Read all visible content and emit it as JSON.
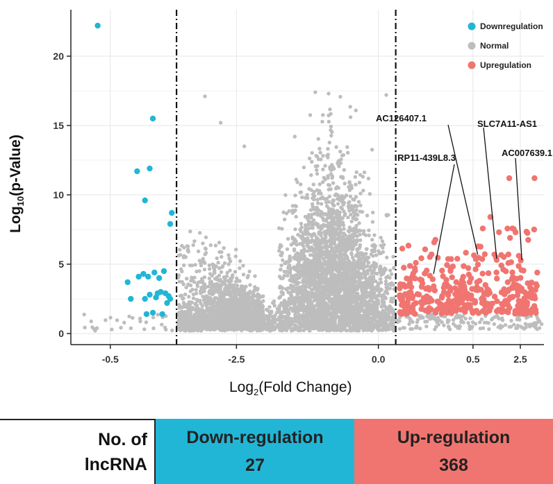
{
  "chart_data": {
    "type": "scatter",
    "title": "",
    "xlabel_main": "Log",
    "xlabel_sub": "2",
    "xlabel_rest": "(Fold Change)",
    "ylabel_main": "Log",
    "ylabel_sub": "10",
    "ylabel_rest": "(p-Value)",
    "xticks": [
      "-0.5",
      "-2.5",
      "0.0",
      "0.5",
      "2.5"
    ],
    "yticks": [
      0,
      5,
      10,
      15,
      20
    ],
    "ylim": [
      0,
      22.5
    ],
    "cutoffs": [
      "left",
      "right"
    ],
    "grid": true,
    "legend_position": "top-right",
    "legend": [
      {
        "name": "Downregulation",
        "color": "#22b6d6"
      },
      {
        "name": "Normal",
        "color": "#bdbdbd"
      },
      {
        "name": "Upregulation",
        "color": "#f07470"
      }
    ],
    "series": [
      {
        "name": "Downregulation",
        "color": "#22b6d6",
        "points": [
          [
            0.17,
            22.2
          ],
          [
            0.52,
            15.5
          ],
          [
            0.5,
            11.9
          ],
          [
            0.42,
            11.7
          ],
          [
            0.47,
            9.6
          ],
          [
            0.64,
            8.7
          ],
          [
            0.63,
            7.9
          ],
          [
            0.36,
            3.7
          ],
          [
            0.38,
            2.5
          ],
          [
            0.43,
            4.1
          ],
          [
            0.46,
            4.3
          ],
          [
            0.49,
            4.1
          ],
          [
            0.53,
            4.4
          ],
          [
            0.56,
            4.0
          ],
          [
            0.59,
            4.5
          ],
          [
            0.47,
            2.5
          ],
          [
            0.5,
            2.8
          ],
          [
            0.54,
            2.6
          ],
          [
            0.57,
            3.0
          ],
          [
            0.6,
            2.9
          ],
          [
            0.62,
            2.7
          ],
          [
            0.63,
            2.5
          ],
          [
            0.61,
            2.2
          ],
          [
            0.52,
            1.5
          ],
          [
            0.48,
            1.4
          ],
          [
            0.58,
            1.4
          ],
          [
            0.55,
            2.9
          ]
        ]
      },
      {
        "name": "Normal",
        "color": "#bdbdbd"
      },
      {
        "name": "Upregulation",
        "color": "#f07470"
      }
    ],
    "annotations": [
      {
        "label": "AC126407.1",
        "x": 2.58,
        "y": 5.7
      },
      {
        "label": "SLC7A11-AS1",
        "x": 2.7,
        "y": 5.4
      },
      {
        "label": "AC007639.1",
        "x": 2.86,
        "y": 5.3
      },
      {
        "label": "RP11-439L8.3",
        "x": 2.3,
        "y": 4.3
      }
    ]
  },
  "summary": {
    "label_line1": "No. of",
    "label_line2": "lncRNA",
    "down_label": "Down-regulation",
    "down_count": "27",
    "up_label": "Up-regulation",
    "up_count": "368"
  }
}
